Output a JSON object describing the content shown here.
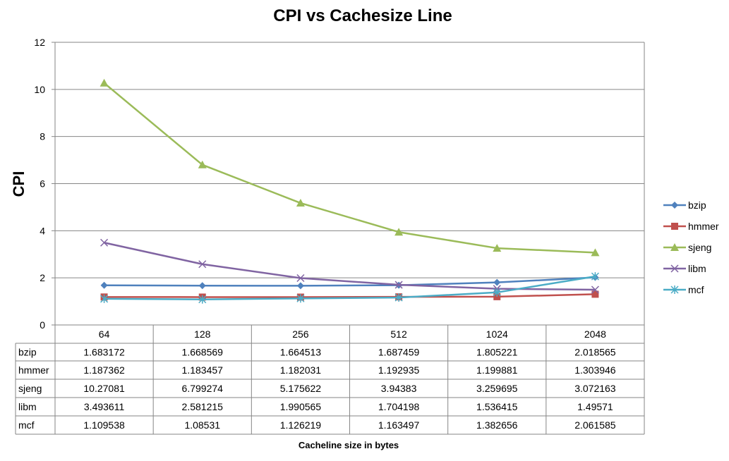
{
  "chart_data": {
    "type": "line",
    "title": "CPI vs Cachesize Line",
    "xlabel": "Cacheline size in bytes",
    "ylabel": "CPI",
    "ylim": [
      0,
      12
    ],
    "yticks": [
      0,
      2,
      4,
      6,
      8,
      10,
      12
    ],
    "grid": true,
    "legend_position": "right",
    "data_table": true,
    "categories": [
      "64",
      "128",
      "256",
      "512",
      "1024",
      "2048"
    ],
    "series": [
      {
        "name": "bzip",
        "color": "#4f81bd",
        "marker": "diamond",
        "values": [
          1.683172,
          1.668569,
          1.664513,
          1.687459,
          1.805221,
          2.018565
        ],
        "labels": [
          "1.683172",
          "1.668569",
          "1.664513",
          "1.687459",
          "1.805221",
          "2.018565"
        ]
      },
      {
        "name": "hmmer",
        "color": "#c0504d",
        "marker": "square",
        "values": [
          1.187362,
          1.183457,
          1.182031,
          1.192935,
          1.199881,
          1.303946
        ],
        "labels": [
          "1.187362",
          "1.183457",
          "1.182031",
          "1.192935",
          "1.199881",
          "1.303946"
        ]
      },
      {
        "name": "sjeng",
        "color": "#9bbb59",
        "marker": "triangle",
        "values": [
          10.27081,
          6.799274,
          5.175622,
          3.94383,
          3.259695,
          3.072163
        ],
        "labels": [
          "10.27081",
          "6.799274",
          "5.175622",
          "3.94383",
          "3.259695",
          "3.072163"
        ]
      },
      {
        "name": "libm",
        "color": "#8064a2",
        "marker": "x",
        "values": [
          3.493611,
          2.581215,
          1.990565,
          1.704198,
          1.536415,
          1.49571
        ],
        "labels": [
          "3.493611",
          "2.581215",
          "1.990565",
          "1.704198",
          "1.536415",
          "1.49571"
        ]
      },
      {
        "name": "mcf",
        "color": "#4bacc6",
        "marker": "star",
        "values": [
          1.109538,
          1.08531,
          1.126219,
          1.163497,
          1.382656,
          2.061585
        ],
        "labels": [
          "1.109538",
          "1.08531",
          "1.126219",
          "1.163497",
          "1.382656",
          "2.061585"
        ]
      }
    ]
  }
}
